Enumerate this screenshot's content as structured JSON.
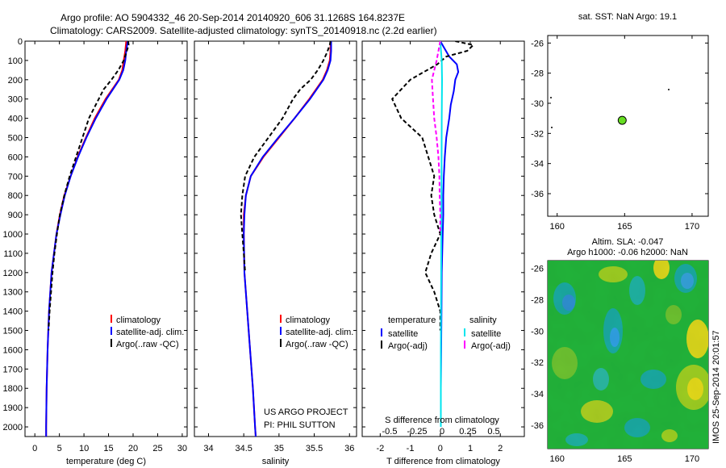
{
  "header": {
    "line1": "Argo profile: AO 5904332_46 20-Sep-2014 20140920_606 31.1268S 164.8237E",
    "line2": "Climatology: CARS2009. Satellite-adjusted climatology: synTS_20140918.nc (2.2d earlier)"
  },
  "colors": {
    "climatology": "#ff0000",
    "satellite": "#0000ff",
    "argo": "#000000",
    "salinity_sat": "#00e5ee",
    "salinity_argo": "#ff00ff",
    "float_marker": "#66dd22"
  },
  "depth_ticks": [
    0,
    100,
    200,
    300,
    400,
    500,
    600,
    700,
    800,
    900,
    1000,
    1100,
    1200,
    1300,
    1400,
    1500,
    1600,
    1700,
    1800,
    1900,
    2000
  ],
  "chart_data": [
    {
      "type": "line",
      "xlabel": "temperature (deg C)",
      "xticks": [
        0,
        5,
        10,
        15,
        20,
        25,
        30
      ],
      "xlim": [
        -2,
        31
      ],
      "ylim": [
        0,
        2050
      ],
      "legend": [
        "climatology",
        "satellite-adj. clim.",
        "Argo(..raw -QC)"
      ],
      "series": [
        {
          "name": "climatology",
          "color": "#ff0000",
          "dash": "",
          "depth": [
            0,
            50,
            100,
            150,
            200,
            300,
            400,
            500,
            600,
            700,
            800,
            900,
            1000,
            1200,
            1400,
            1600,
            1800,
            2000,
            2050
          ],
          "values": [
            18.6,
            18.4,
            18.1,
            17.8,
            17.1,
            14.4,
            12.2,
            10.4,
            8.7,
            7.3,
            6.0,
            5.1,
            4.4,
            3.4,
            2.9,
            2.6,
            2.4,
            2.3,
            2.3
          ]
        },
        {
          "name": "satellite-adj. clim.",
          "color": "#0000ff",
          "dash": "",
          "depth": [
            0,
            50,
            100,
            150,
            200,
            300,
            400,
            500,
            600,
            700,
            800,
            900,
            1000,
            1200,
            1400,
            1600,
            1800,
            2000,
            2050
          ],
          "values": [
            18.9,
            18.6,
            18.4,
            18.0,
            17.2,
            14.6,
            12.4,
            10.5,
            8.8,
            7.3,
            6.1,
            5.2,
            4.4,
            3.4,
            2.9,
            2.6,
            2.4,
            2.3,
            2.3
          ]
        },
        {
          "name": "Argo(..raw -QC)",
          "color": "#000000",
          "dash": "5,3",
          "depth": [
            0,
            20,
            60,
            100,
            150,
            200,
            250,
            300,
            400,
            500,
            600,
            700,
            800,
            900,
            1000,
            1100,
            1200,
            1300,
            1400,
            1500
          ],
          "values": [
            19.0,
            19.1,
            18.6,
            18.1,
            17.0,
            15.6,
            14.0,
            13.0,
            11.0,
            9.7,
            8.4,
            7.1,
            6.0,
            5.1,
            4.5,
            4.0,
            3.6,
            3.3,
            3.0,
            2.8
          ]
        }
      ]
    },
    {
      "type": "line",
      "xlabel": "salinity",
      "xticks": [
        34,
        34.5,
        35,
        35.5,
        36
      ],
      "xlim": [
        33.8,
        36.1
      ],
      "ylim": [
        0,
        2050
      ],
      "legend": [
        "climatology",
        "satellite-adj. clim.",
        "Argo(..raw -QC)"
      ],
      "series": [
        {
          "name": "climatology",
          "color": "#ff0000",
          "dash": "",
          "depth": [
            0,
            50,
            100,
            150,
            200,
            300,
            400,
            500,
            600,
            700,
            800,
            900,
            1000,
            1200,
            1400,
            1600,
            1800,
            2000,
            2050
          ],
          "values": [
            35.73,
            35.73,
            35.72,
            35.68,
            35.62,
            35.43,
            35.22,
            35.0,
            34.78,
            34.6,
            34.53,
            34.5,
            34.5,
            34.51,
            34.55,
            34.59,
            34.63,
            34.66,
            34.67
          ]
        },
        {
          "name": "satellite-adj. clim.",
          "color": "#0000ff",
          "dash": "",
          "depth": [
            0,
            50,
            100,
            150,
            200,
            300,
            400,
            500,
            600,
            700,
            800,
            900,
            1000,
            1200,
            1400,
            1600,
            1800,
            2000,
            2050
          ],
          "values": [
            35.74,
            35.74,
            35.73,
            35.69,
            35.63,
            35.44,
            35.22,
            34.99,
            34.77,
            34.6,
            34.53,
            34.51,
            34.5,
            34.51,
            34.55,
            34.59,
            34.63,
            34.66,
            34.67
          ]
        },
        {
          "name": "Argo(..raw -QC)",
          "color": "#000000",
          "dash": "5,3",
          "depth": [
            0,
            20,
            60,
            100,
            150,
            200,
            250,
            300,
            400,
            500,
            600,
            700,
            800,
            900,
            1000,
            1100,
            1200
          ],
          "values": [
            35.73,
            35.72,
            35.68,
            35.63,
            35.55,
            35.45,
            35.3,
            35.2,
            35.05,
            34.85,
            34.65,
            34.52,
            34.48,
            34.46,
            34.48,
            34.5,
            34.52
          ]
        }
      ],
      "annotations": [
        "US ARGO PROJECT",
        "PI: PHIL SUTTON"
      ]
    },
    {
      "type": "line",
      "xlabel": "T difference from climatology",
      "xlabel_top": "S difference from climatology",
      "xticks": [
        -2,
        -1,
        0,
        1,
        2
      ],
      "xticks_top": [
        "-0.5",
        "-0.25",
        "0",
        "0.25",
        "0.5"
      ],
      "xlim": [
        -2.6,
        2.8
      ],
      "ylim": [
        0,
        2050
      ],
      "legend_titles": [
        "temperature",
        "salinity"
      ],
      "legend": [
        "satellite",
        "Argo(-adj)",
        "satellite",
        "Argo(-adj)"
      ],
      "series": [
        {
          "name": "satellite",
          "color": "#0000ff",
          "dash": "",
          "depth": [
            0,
            80,
            120,
            160,
            200,
            260,
            330,
            400,
            500,
            600,
            700,
            800,
            900,
            1000,
            1200,
            1400,
            1600,
            1800,
            2000
          ],
          "values": [
            0.0,
            0.3,
            0.55,
            0.6,
            0.5,
            0.45,
            0.35,
            0.3,
            0.2,
            0.15,
            0.12,
            0.1,
            0.1,
            0.08,
            0.05,
            0.04,
            0.03,
            0.02,
            0.02
          ]
        },
        {
          "name": "Argo(-adj)",
          "color": "#000000",
          "dash": "5,3",
          "depth": [
            0,
            20,
            50,
            80,
            120,
            200,
            300,
            400,
            500,
            600,
            700,
            800,
            900,
            1000,
            1100,
            1200,
            1300,
            1400,
            1500
          ],
          "values": [
            0.5,
            1.1,
            0.9,
            0.2,
            -0.1,
            -1.0,
            -1.6,
            -1.3,
            -0.6,
            -0.4,
            -0.2,
            -0.3,
            -0.2,
            0.0,
            -0.3,
            -0.5,
            -0.2,
            0.0,
            0.0
          ]
        },
        {
          "name": "satellite",
          "color": "#00e5ee",
          "dash": "",
          "depth": [
            0,
            100,
            200,
            400,
            800,
            1200,
            1600,
            2000
          ],
          "values": [
            0.0,
            0.05,
            0.06,
            0.05,
            0.04,
            0.03,
            0.02,
            0.02
          ]
        },
        {
          "name": "Argo(-adj)",
          "color": "#ff00ff",
          "dash": "5,3",
          "depth": [
            0,
            100,
            200,
            300,
            400,
            500,
            600,
            700,
            800,
            900,
            1000
          ],
          "values": [
            0.0,
            -0.12,
            -0.28,
            -0.24,
            -0.2,
            -0.12,
            -0.06,
            -0.03,
            -0.02,
            0.0,
            0.0
          ]
        }
      ]
    },
    {
      "type": "scatter",
      "title": "sat. SST: NaN  Argo: 19.1",
      "xticks": [
        160,
        165,
        170
      ],
      "yticks": [
        -26,
        -28,
        -30,
        -32,
        -34,
        -36
      ],
      "xlim": [
        159.3,
        171.2
      ],
      "ylim": [
        -37.5,
        -25.5
      ],
      "points": [
        {
          "x": 164.82,
          "y": -31.13
        }
      ]
    },
    {
      "type": "heatmap",
      "title": "Altim. SLA: -0.047",
      "subtitle": "Argo h1000: -0.06 h2000: NaN",
      "xticks": [
        160,
        165,
        170
      ],
      "yticks": [
        -26,
        -28,
        -30,
        -32,
        -34,
        -36
      ],
      "xlim": [
        159.3,
        171.2
      ],
      "ylim": [
        -37.5,
        -25.5
      ],
      "points": [
        {
          "x": 164.82,
          "y": -31.13
        }
      ]
    }
  ],
  "footer_credit": "IMOS 25-Sep-2014 20:01:57"
}
